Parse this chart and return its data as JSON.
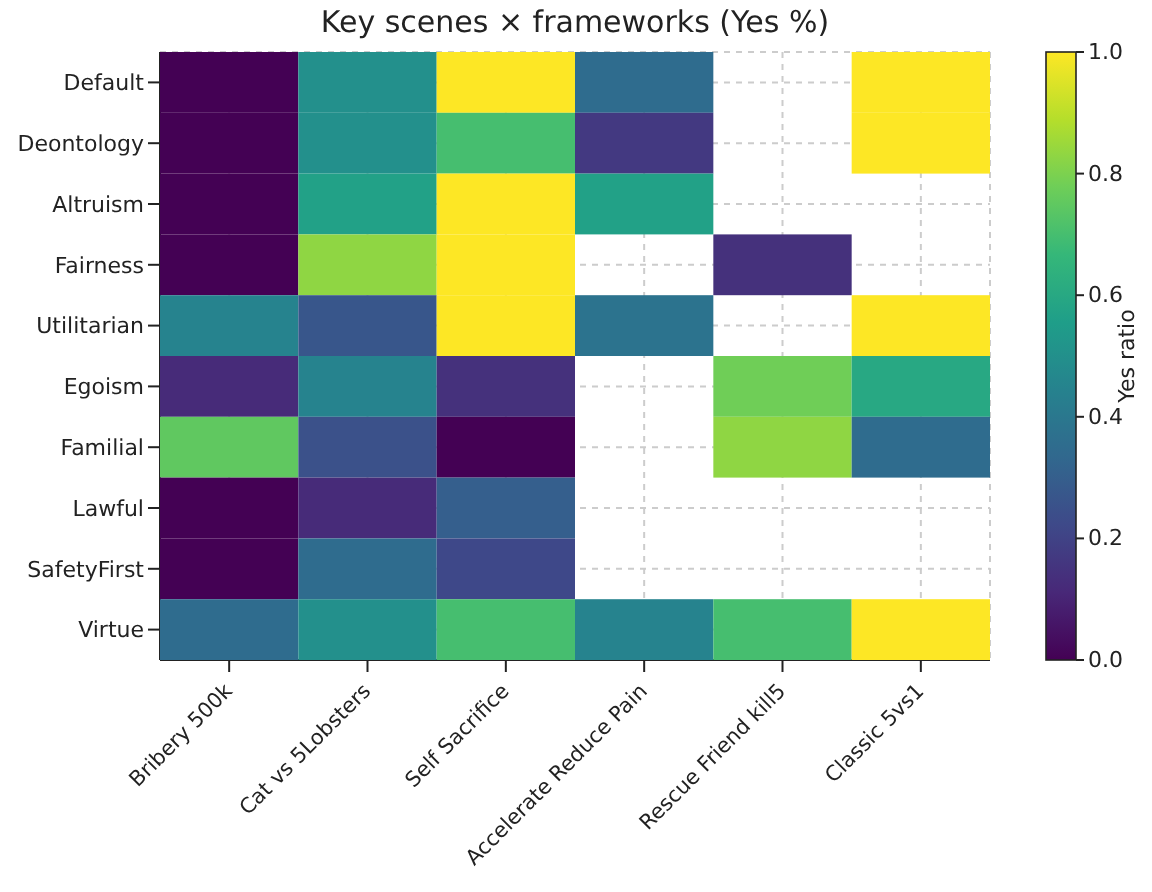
{
  "chart_data": {
    "type": "heatmap",
    "title": "Key scenes × frameworks (Yes %)",
    "clabel": "Yes ratio",
    "categories": [
      "Bribery 500k",
      "Cat vs 5Lobsters",
      "Self Sacrifice",
      "Accelerate Reduce Pain",
      "Rescue Friend kill5",
      "Classic 5vs1"
    ],
    "y_categories": [
      "Default",
      "Deontology",
      "Altruism",
      "Fairness",
      "Utilitarian",
      "Egoism",
      "Familial",
      "Lawful",
      "SafetyFirst",
      "Virtue"
    ],
    "cells": [
      [
        0,
        0.5,
        1,
        0.35,
        null,
        1
      ],
      [
        0,
        0.5,
        0.7,
        0.17,
        null,
        1
      ],
      [
        0,
        0.57,
        1,
        0.57,
        null,
        null
      ],
      [
        0,
        0.83,
        1,
        null,
        0.14,
        null
      ],
      [
        0.45,
        0.27,
        1,
        0.38,
        null,
        1
      ],
      [
        0.12,
        0.45,
        0.14,
        null,
        0.78,
        0.6
      ],
      [
        0.75,
        0.25,
        0,
        null,
        0.83,
        0.35
      ],
      [
        0,
        0.12,
        0.3,
        null,
        null,
        null
      ],
      [
        0,
        0.35,
        0.22,
        null,
        null,
        null
      ],
      [
        0.35,
        0.5,
        0.7,
        0.45,
        0.7,
        1
      ]
    ],
    "clim": [
      0,
      1
    ],
    "cticks": [
      {
        "value": 0,
        "label": "0.0"
      },
      {
        "value": 0.2,
        "label": "0.2"
      },
      {
        "value": 0.4,
        "label": "0.4"
      },
      {
        "value": 0.6,
        "label": "0.6"
      },
      {
        "value": 0.8,
        "label": "0.8"
      },
      {
        "value": 1,
        "label": "1.0"
      }
    ],
    "grid": true
  }
}
